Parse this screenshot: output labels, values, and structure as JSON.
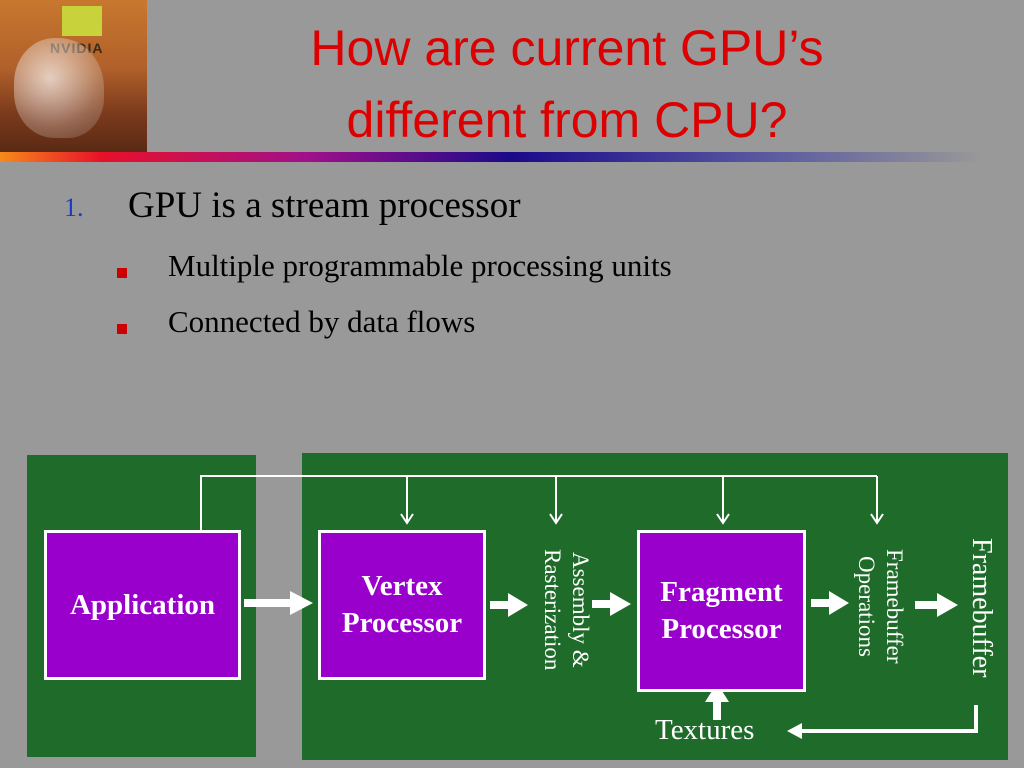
{
  "title": {
    "line1": "How are current GPU’s",
    "line2": "different from CPU?"
  },
  "logo": {
    "text": "NVIDIA"
  },
  "list": {
    "items": [
      {
        "number": "1.",
        "text": "GPU is a stream processor",
        "subitems": [
          "Multiple programmable processing units",
          "Connected by data flows"
        ]
      }
    ]
  },
  "diagram": {
    "application": "Application",
    "vertex": {
      "line1": "Vertex",
      "line2": "Processor"
    },
    "assembly": {
      "line1": "Assembly &",
      "line2": "Rasterization"
    },
    "fragment": {
      "line1": "Fragment",
      "line2": "Processor"
    },
    "fb_ops": {
      "line1": "Framebuffer",
      "line2": "Operations"
    },
    "framebuffer": "Framebuffer",
    "textures": "Textures"
  },
  "colors": {
    "title": "#dd0000",
    "panel": "#1e6b2a",
    "box": "#9900cc",
    "bullet": "#cc0000",
    "number": "#1a3acc"
  }
}
